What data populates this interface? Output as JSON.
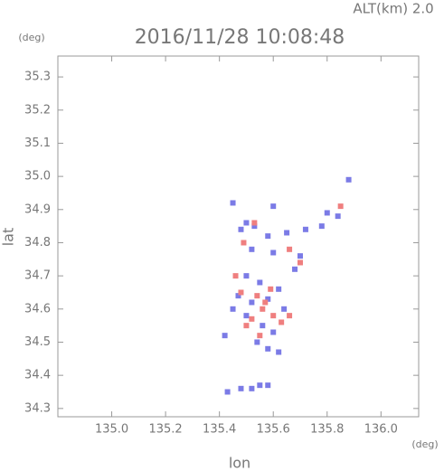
{
  "chart_data": {
    "type": "scatter",
    "title": "2016/11/28 10:08:48",
    "subtitle": "ALT(km) 2.0",
    "x_label": "lon",
    "y_label": "lat",
    "x_unit": "(deg)",
    "y_unit": "(deg)",
    "xlim": [
      134.8,
      136.14
    ],
    "ylim": [
      34.275,
      35.363
    ],
    "xticks": [
      {
        "value": 135,
        "label": "135.0"
      },
      135.2,
      135.4,
      135.6,
      135.8,
      {
        "value": 136,
        "label": "136.0"
      }
    ],
    "yticks": [
      34.3,
      34.4,
      34.5,
      34.6,
      34.7,
      34.8,
      34.9,
      {
        "value": 35,
        "label": "35.0"
      },
      35.1,
      35.2,
      35.3
    ],
    "series": [
      {
        "color": "#7b7be6",
        "x": [
          135.88,
          135.45,
          135.6,
          135.8,
          135.84,
          135.5,
          135.53,
          135.48,
          135.58,
          135.65,
          135.72,
          135.78,
          135.52,
          135.6,
          135.7,
          135.68,
          135.5,
          135.55,
          135.62,
          135.47,
          135.52,
          135.58,
          135.64,
          135.5,
          135.56,
          135.6,
          135.45,
          135.42,
          135.54,
          135.58,
          135.62,
          135.43,
          135.48,
          135.52,
          135.55,
          135.58
        ],
        "values": [
          34.99,
          34.92,
          34.91,
          34.89,
          34.88,
          34.86,
          34.85,
          34.84,
          34.82,
          34.83,
          34.84,
          34.85,
          34.78,
          34.77,
          34.76,
          34.72,
          34.7,
          34.68,
          34.66,
          34.64,
          34.62,
          34.63,
          34.6,
          34.58,
          34.55,
          34.53,
          34.6,
          34.52,
          34.5,
          34.48,
          34.47,
          34.35,
          34.36,
          34.36,
          34.37,
          34.37
        ]
      },
      {
        "color": "#ef7f7f",
        "x": [
          135.85,
          135.53,
          135.49,
          135.66,
          135.7,
          135.46,
          135.48,
          135.56,
          135.6,
          135.52,
          135.63,
          135.57,
          135.54,
          135.59,
          135.5,
          135.66,
          135.55
        ],
        "values": [
          34.91,
          34.86,
          34.8,
          34.78,
          34.74,
          34.7,
          34.65,
          34.6,
          34.58,
          34.57,
          34.56,
          34.62,
          34.64,
          34.66,
          34.55,
          34.58,
          34.52
        ]
      }
    ]
  }
}
